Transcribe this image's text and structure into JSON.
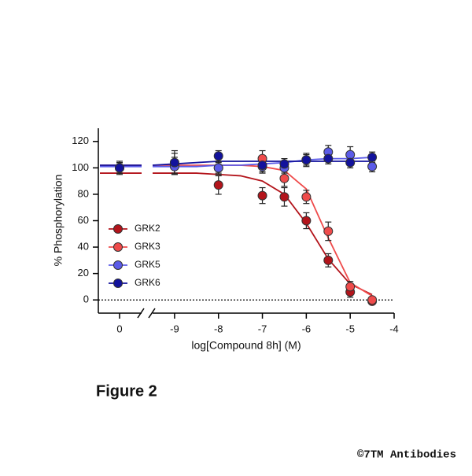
{
  "chart_data": {
    "type": "dose-response",
    "xlabel": "log[Compound 8h] (M)",
    "ylabel": "% Phosphorylation",
    "control_xtick": 0,
    "x": [
      -9,
      -8,
      -7,
      -6.5,
      -6,
      -5.5,
      -5,
      -4.5
    ],
    "fit_x": [
      -9.5,
      -9,
      -8.5,
      -8,
      -7.5,
      -7,
      -6.5,
      -6,
      -5.5,
      -5,
      -4.5
    ],
    "series": [
      {
        "name": "GRK2",
        "color": "#b3141b",
        "control_value": 100,
        "control_error": 5,
        "values": [
          103,
          87,
          79,
          78,
          60,
          30,
          6,
          -1
        ],
        "errors": [
          8,
          7,
          6,
          7,
          6,
          5,
          4,
          2
        ],
        "fit_values": [
          96,
          96,
          96,
          95,
          94,
          90,
          80,
          58,
          31,
          12,
          4
        ]
      },
      {
        "name": "GRK3",
        "color": "#ef4b4b",
        "control_value": 100,
        "control_error": 4,
        "values": [
          102,
          100,
          107,
          92,
          78,
          52,
          10,
          0
        ],
        "errors": [
          6,
          5,
          6,
          6,
          5,
          7,
          4,
          2
        ],
        "fit_values": [
          102,
          102,
          102,
          102,
          102,
          101,
          98,
          84,
          47,
          13,
          3
        ]
      },
      {
        "name": "GRK5",
        "color": "#5b5be8",
        "control_value": 100,
        "control_error": 4,
        "values": [
          101,
          100,
          101,
          100,
          106,
          112,
          110,
          101
        ],
        "errors": [
          5,
          4,
          5,
          4,
          5,
          5,
          6,
          4
        ],
        "fit_values": [
          101,
          101,
          101,
          102,
          102,
          103,
          104,
          106,
          107,
          107,
          108
        ]
      },
      {
        "name": "GRK6",
        "color": "#12129c",
        "control_value": 100,
        "control_error": 4,
        "values": [
          104,
          109,
          102,
          103,
          106,
          107,
          104,
          108
        ],
        "errors": [
          9,
          4,
          5,
          4,
          4,
          4,
          4,
          4
        ],
        "fit_values": [
          102,
          103,
          104,
          105,
          105,
          105,
          105,
          105,
          105,
          105,
          105
        ]
      }
    ],
    "xlim": [
      -9.5,
      -4
    ],
    "xticks": [
      -9,
      -8,
      -7,
      -6,
      -5,
      -4
    ],
    "ylim": [
      -10,
      130
    ],
    "yticks": [
      0,
      20,
      40,
      60,
      80,
      100,
      120
    ],
    "reference_line": 0,
    "legend": "left",
    "grid": false
  },
  "figure_label": "Figure 2",
  "copyright": "©7TM Antibodies"
}
